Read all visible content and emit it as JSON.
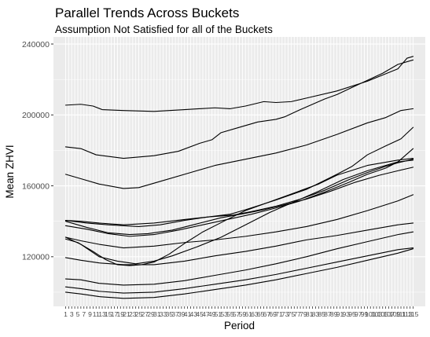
{
  "chart_data": {
    "type": "line",
    "title": "Parallel Trends Across Buckets",
    "subtitle": "Assumption Not Satisfied for all of the Buckets",
    "xlabel": "Period",
    "ylabel": "Mean ZHVI",
    "xlim": [
      1,
      115
    ],
    "ylim": [
      92000,
      244000
    ],
    "y_ticks": [
      120000,
      160000,
      200000,
      240000
    ],
    "y_tick_labels": [
      "120000",
      "160000",
      "200000",
      "240000"
    ],
    "x_ticks": [
      1,
      115
    ],
    "x_ticks_every_period": true,
    "x_tick_labels_printed": [
      "1",
      "3",
      "5",
      "7",
      "9",
      "11",
      "13",
      "15",
      "17",
      "19",
      "21",
      "23",
      "25",
      "27",
      "29",
      "31",
      "33",
      "35",
      "37",
      "39",
      "41",
      "43",
      "45",
      "47",
      "49",
      "51",
      "53",
      "55",
      "57",
      "59",
      "61",
      "63",
      "65",
      "67",
      "69",
      "71",
      "73",
      "75",
      "77",
      "79",
      "81",
      "83",
      "85",
      "87",
      "89",
      "91",
      "93",
      "95",
      "97",
      "99",
      "101",
      "103",
      "105",
      "107",
      "109",
      "111",
      "113",
      "115"
    ],
    "grid": true,
    "background": "#ebebeb",
    "grid_color": "#ffffff",
    "line_color": "#000000",
    "series": [
      {
        "points": [
          [
            1,
            205500
          ],
          [
            6,
            206000
          ],
          [
            10,
            205000
          ],
          [
            13,
            203000
          ],
          [
            20,
            202500
          ],
          [
            30,
            202000
          ],
          [
            40,
            203000
          ],
          [
            50,
            204000
          ],
          [
            55,
            203500
          ],
          [
            60,
            205000
          ],
          [
            66,
            207500
          ],
          [
            70,
            207000
          ],
          [
            75,
            207500
          ],
          [
            80,
            209500
          ],
          [
            90,
            213500
          ],
          [
            100,
            219000
          ],
          [
            110,
            226000
          ],
          [
            113,
            232000
          ],
          [
            115,
            233000
          ]
        ]
      },
      {
        "points": [
          [
            1,
            182000
          ],
          [
            6,
            181000
          ],
          [
            11,
            177500
          ],
          [
            20,
            175500
          ],
          [
            30,
            177000
          ],
          [
            38,
            179500
          ],
          [
            45,
            184000
          ],
          [
            49,
            186000
          ],
          [
            52,
            190000
          ],
          [
            58,
            193000
          ],
          [
            64,
            196000
          ],
          [
            70,
            197500
          ],
          [
            73,
            199000
          ],
          [
            78,
            203000
          ],
          [
            82,
            206000
          ],
          [
            86,
            209000
          ],
          [
            90,
            211500
          ],
          [
            95,
            215500
          ],
          [
            100,
            219500
          ],
          [
            105,
            223500
          ],
          [
            110,
            228500
          ],
          [
            115,
            231000
          ]
        ]
      },
      {
        "points": [
          [
            1,
            166500
          ],
          [
            6,
            164000
          ],
          [
            12,
            161000
          ],
          [
            20,
            158500
          ],
          [
            25,
            159000
          ],
          [
            32,
            162500
          ],
          [
            42,
            167500
          ],
          [
            50,
            171500
          ],
          [
            60,
            175000
          ],
          [
            70,
            178500
          ],
          [
            80,
            183000
          ],
          [
            90,
            189000
          ],
          [
            100,
            195500
          ],
          [
            106,
            198500
          ],
          [
            111,
            202500
          ],
          [
            115,
            203500
          ]
        ]
      },
      {
        "points": [
          [
            1,
            140500
          ],
          [
            8,
            139000
          ],
          [
            15,
            138000
          ],
          [
            20,
            137500
          ],
          [
            25,
            137000
          ],
          [
            32,
            138000
          ],
          [
            40,
            140500
          ],
          [
            48,
            142500
          ],
          [
            55,
            144000
          ],
          [
            60,
            146500
          ],
          [
            70,
            152000
          ],
          [
            80,
            158000
          ],
          [
            90,
            166500
          ],
          [
            95,
            171000
          ],
          [
            100,
            177500
          ],
          [
            106,
            182500
          ],
          [
            111,
            186500
          ],
          [
            115,
            193000
          ]
        ]
      },
      {
        "points": [
          [
            1,
            130000
          ],
          [
            5,
            128000
          ],
          [
            10,
            123000
          ],
          [
            14,
            118500
          ],
          [
            18,
            115500
          ],
          [
            22,
            115000
          ],
          [
            26,
            115500
          ],
          [
            30,
            117000
          ],
          [
            35,
            121500
          ],
          [
            40,
            127500
          ],
          [
            46,
            134000
          ],
          [
            54,
            141000
          ],
          [
            60,
            146000
          ],
          [
            68,
            151000
          ],
          [
            76,
            156000
          ],
          [
            84,
            161000
          ],
          [
            90,
            166000
          ],
          [
            100,
            171500
          ],
          [
            110,
            174500
          ],
          [
            115,
            175500
          ]
        ]
      },
      {
        "points": [
          [
            1,
            131000
          ],
          [
            6,
            127000
          ],
          [
            12,
            120000
          ],
          [
            18,
            117500
          ],
          [
            24,
            116000
          ],
          [
            30,
            117500
          ],
          [
            36,
            120500
          ],
          [
            44,
            125500
          ],
          [
            52,
            131000
          ],
          [
            60,
            138000
          ],
          [
            68,
            145000
          ],
          [
            76,
            151000
          ],
          [
            84,
            157000
          ],
          [
            92,
            163500
          ],
          [
            100,
            168500
          ],
          [
            110,
            173500
          ],
          [
            115,
            181000
          ]
        ]
      },
      {
        "points": [
          [
            1,
            140000
          ],
          [
            8,
            136500
          ],
          [
            15,
            133500
          ],
          [
            22,
            132500
          ],
          [
            28,
            133000
          ],
          [
            36,
            135000
          ],
          [
            44,
            138500
          ],
          [
            52,
            142000
          ],
          [
            60,
            144500
          ],
          [
            66,
            146500
          ],
          [
            72,
            149000
          ],
          [
            80,
            152500
          ],
          [
            88,
            157000
          ],
          [
            96,
            162000
          ],
          [
            104,
            166000
          ],
          [
            110,
            168500
          ],
          [
            115,
            170500
          ]
        ]
      },
      {
        "points": [
          [
            1,
            140500
          ],
          [
            6,
            140000
          ],
          [
            12,
            139000
          ],
          [
            20,
            138000
          ],
          [
            30,
            139000
          ],
          [
            40,
            141000
          ],
          [
            48,
            142500
          ],
          [
            56,
            143500
          ],
          [
            62,
            145500
          ],
          [
            70,
            148500
          ],
          [
            78,
            152500
          ],
          [
            86,
            157500
          ],
          [
            94,
            163500
          ],
          [
            100,
            167500
          ],
          [
            106,
            171000
          ],
          [
            110,
            173000
          ],
          [
            115,
            175000
          ]
        ]
      },
      {
        "points": [
          [
            1,
            137500
          ],
          [
            8,
            135500
          ],
          [
            15,
            133000
          ],
          [
            22,
            131500
          ],
          [
            30,
            132500
          ],
          [
            38,
            135000
          ],
          [
            46,
            138000
          ],
          [
            54,
            141000
          ],
          [
            62,
            144000
          ],
          [
            70,
            147500
          ],
          [
            78,
            151500
          ],
          [
            86,
            156500
          ],
          [
            94,
            162000
          ],
          [
            100,
            166500
          ],
          [
            106,
            170000
          ],
          [
            110,
            173500
          ],
          [
            115,
            174500
          ]
        ]
      },
      {
        "points": [
          [
            1,
            131000
          ],
          [
            6,
            129000
          ],
          [
            12,
            127000
          ],
          [
            20,
            125000
          ],
          [
            30,
            126000
          ],
          [
            40,
            128000
          ],
          [
            50,
            129500
          ],
          [
            60,
            131500
          ],
          [
            70,
            134000
          ],
          [
            80,
            137000
          ],
          [
            90,
            141000
          ],
          [
            100,
            146000
          ],
          [
            110,
            151500
          ],
          [
            115,
            155000
          ]
        ]
      },
      {
        "points": [
          [
            1,
            119500
          ],
          [
            6,
            118000
          ],
          [
            12,
            116500
          ],
          [
            20,
            115500
          ],
          [
            30,
            115500
          ],
          [
            40,
            117500
          ],
          [
            50,
            120500
          ],
          [
            60,
            123000
          ],
          [
            70,
            126000
          ],
          [
            80,
            129500
          ],
          [
            90,
            132000
          ],
          [
            100,
            135000
          ],
          [
            110,
            138000
          ],
          [
            115,
            139000
          ]
        ]
      },
      {
        "points": [
          [
            1,
            107500
          ],
          [
            6,
            107000
          ],
          [
            12,
            105000
          ],
          [
            20,
            104000
          ],
          [
            30,
            104500
          ],
          [
            40,
            106500
          ],
          [
            50,
            109500
          ],
          [
            60,
            112500
          ],
          [
            70,
            116000
          ],
          [
            80,
            120000
          ],
          [
            90,
            124500
          ],
          [
            100,
            128500
          ],
          [
            110,
            132500
          ],
          [
            115,
            134000
          ]
        ]
      },
      {
        "points": [
          [
            1,
            103000
          ],
          [
            6,
            102000
          ],
          [
            12,
            100500
          ],
          [
            20,
            99500
          ],
          [
            30,
            100000
          ],
          [
            40,
            102000
          ],
          [
            50,
            104500
          ],
          [
            60,
            107000
          ],
          [
            70,
            110000
          ],
          [
            80,
            113500
          ],
          [
            90,
            117000
          ],
          [
            100,
            120500
          ],
          [
            110,
            124000
          ],
          [
            115,
            125000
          ]
        ]
      },
      {
        "points": [
          [
            1,
            100000
          ],
          [
            6,
            99000
          ],
          [
            12,
            97500
          ],
          [
            20,
            96500
          ],
          [
            30,
            97000
          ],
          [
            40,
            99000
          ],
          [
            50,
            101500
          ],
          [
            60,
            104000
          ],
          [
            70,
            107000
          ],
          [
            80,
            110500
          ],
          [
            90,
            114000
          ],
          [
            100,
            118000
          ],
          [
            110,
            122000
          ],
          [
            115,
            124500
          ]
        ]
      }
    ]
  }
}
